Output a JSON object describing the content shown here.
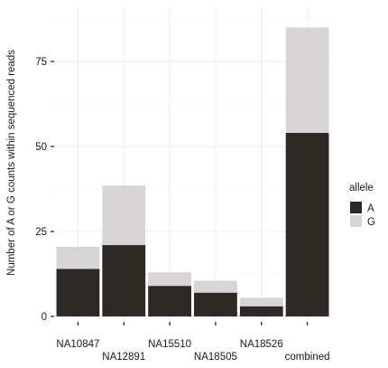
{
  "chart_data": {
    "type": "bar",
    "stacked": true,
    "categories": [
      "NA10847",
      "NA12891",
      "NA15510",
      "NA18505",
      "NA18526",
      "combined"
    ],
    "series": [
      {
        "name": "A",
        "values": [
          14,
          21,
          9,
          7,
          3,
          54
        ]
      },
      {
        "name": "G",
        "values": [
          6.5,
          17.5,
          4,
          3.5,
          2.5,
          31
        ]
      }
    ],
    "ylabel": "Number of A or G counts within sequenced reads",
    "xlabel": "",
    "ylim": [
      0,
      90
    ],
    "yticks": [
      0,
      25,
      50,
      75
    ],
    "grid": true,
    "legend": {
      "title": "allele",
      "position": "right"
    },
    "colors": {
      "A": "#2d2925",
      "G": "#d6d4d4",
      "grid": "#ececec",
      "axis": "#1a1a1a"
    }
  }
}
